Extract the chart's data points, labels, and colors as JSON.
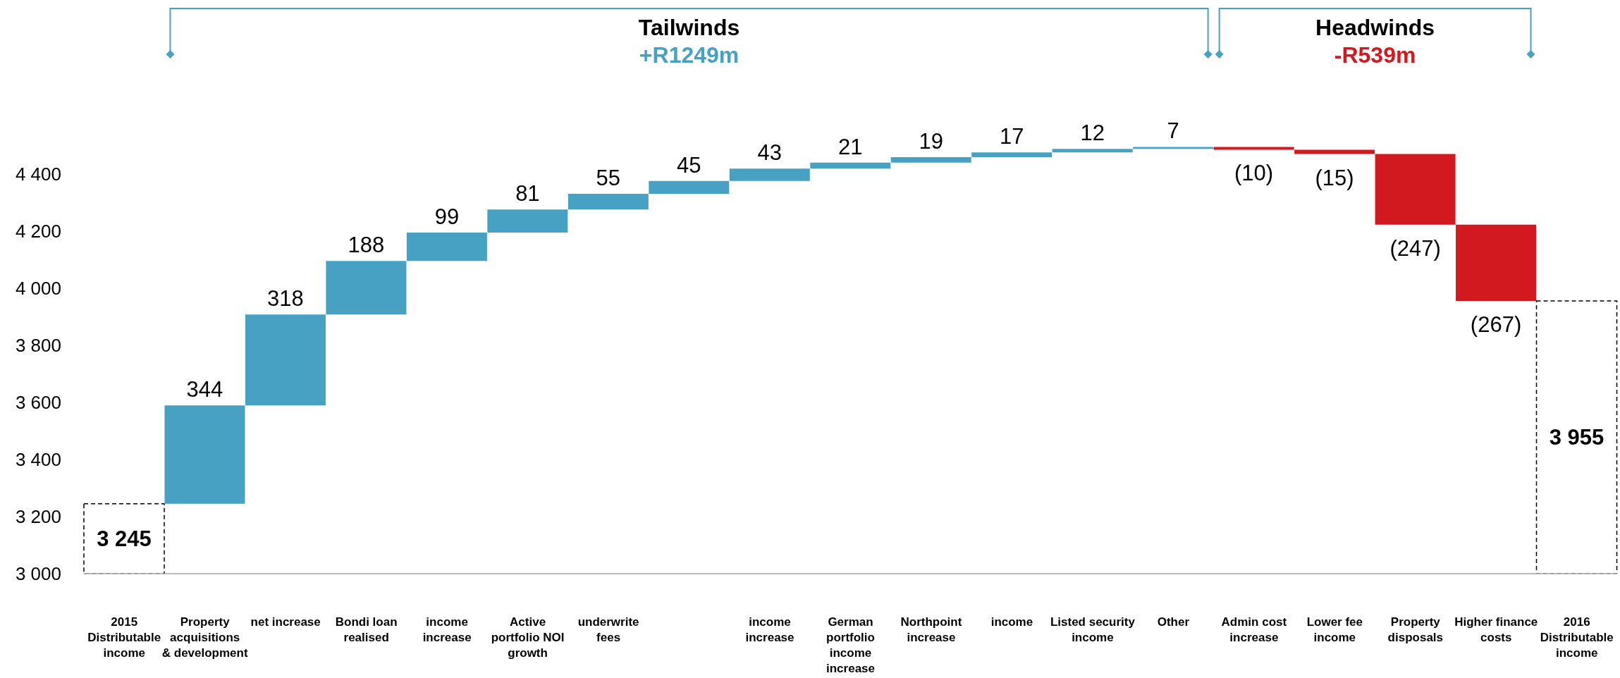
{
  "chart_data": {
    "type": "bar",
    "categories": [
      "2015 Distributable income",
      "Property acquisitions & development",
      "net increase",
      "Bondi loan realised",
      "income increase",
      "Active portfolio NOI growth",
      "underwrite fees",
      null,
      "income increase",
      "German portfolio income increase",
      "Northpoint increase",
      "income",
      "Listed security income",
      "Other",
      "Admin cost increase",
      "Lower fee income",
      "Property disposals",
      "Higher finance costs",
      "2016 Distributable income"
    ],
    "series": [
      {
        "color": "#000000",
        "line_style": "dashed",
        "values": [
          3245,
          null,
          null,
          null,
          null,
          null,
          null,
          null,
          null,
          null,
          null,
          null,
          null,
          null,
          null,
          null,
          null,
          null,
          3955
        ],
        "value_labels": [
          "3 245",
          null,
          null,
          null,
          null,
          null,
          null,
          null,
          null,
          null,
          null,
          null,
          null,
          null,
          null,
          null,
          null,
          null,
          "3 955"
        ]
      },
      {
        "values": [
          null,
          344,
          318,
          188,
          99,
          81,
          55,
          45,
          43,
          21,
          19,
          17,
          12,
          7,
          -10,
          -15,
          -247,
          -267,
          null
        ],
        "base": [
          null,
          3245,
          3589,
          3907,
          4095,
          4194,
          4275,
          4330,
          4375,
          4418,
          4439,
          4458,
          4475,
          4487,
          4494,
          4484,
          4469,
          4222,
          null
        ],
        "colors": [
          null,
          "#47a1c3",
          "#47a1c3",
          "#47a1c3",
          "#47a1c3",
          "#47a1c3",
          "#47a1c3",
          "#47a1c3",
          "#47a1c3",
          "#47a1c3",
          "#47a1c3",
          "#47a1c3",
          "#47a1c3",
          "#47a1c3",
          "#d1191f",
          "#d1191f",
          "#d1191f",
          "#d1191f",
          null
        ],
        "value_labels": [
          null,
          "344",
          "318",
          "188",
          "99",
          "81",
          "55",
          "45",
          "43",
          "21",
          "19",
          "17",
          "12",
          "7",
          "(10)",
          "(15)",
          "(247)",
          "(267)",
          null
        ]
      }
    ],
    "ylim": [
      3000,
      4500
    ],
    "yticks": [
      {
        "value": 3000,
        "label": "3 000"
      },
      {
        "value": 3200,
        "label": "3 200"
      },
      {
        "value": 3400,
        "label": "3 400"
      },
      {
        "value": 3600,
        "label": "3 600"
      },
      {
        "value": 3800,
        "label": "3 800"
      },
      {
        "value": 4000,
        "label": "4 000"
      },
      {
        "value": 4200,
        "label": "4 200"
      },
      {
        "value": 4400,
        "label": "4 400"
      }
    ],
    "annotations": [
      "Tailwinds",
      "+R1249m",
      "Headwinds",
      "-R539m"
    ]
  }
}
